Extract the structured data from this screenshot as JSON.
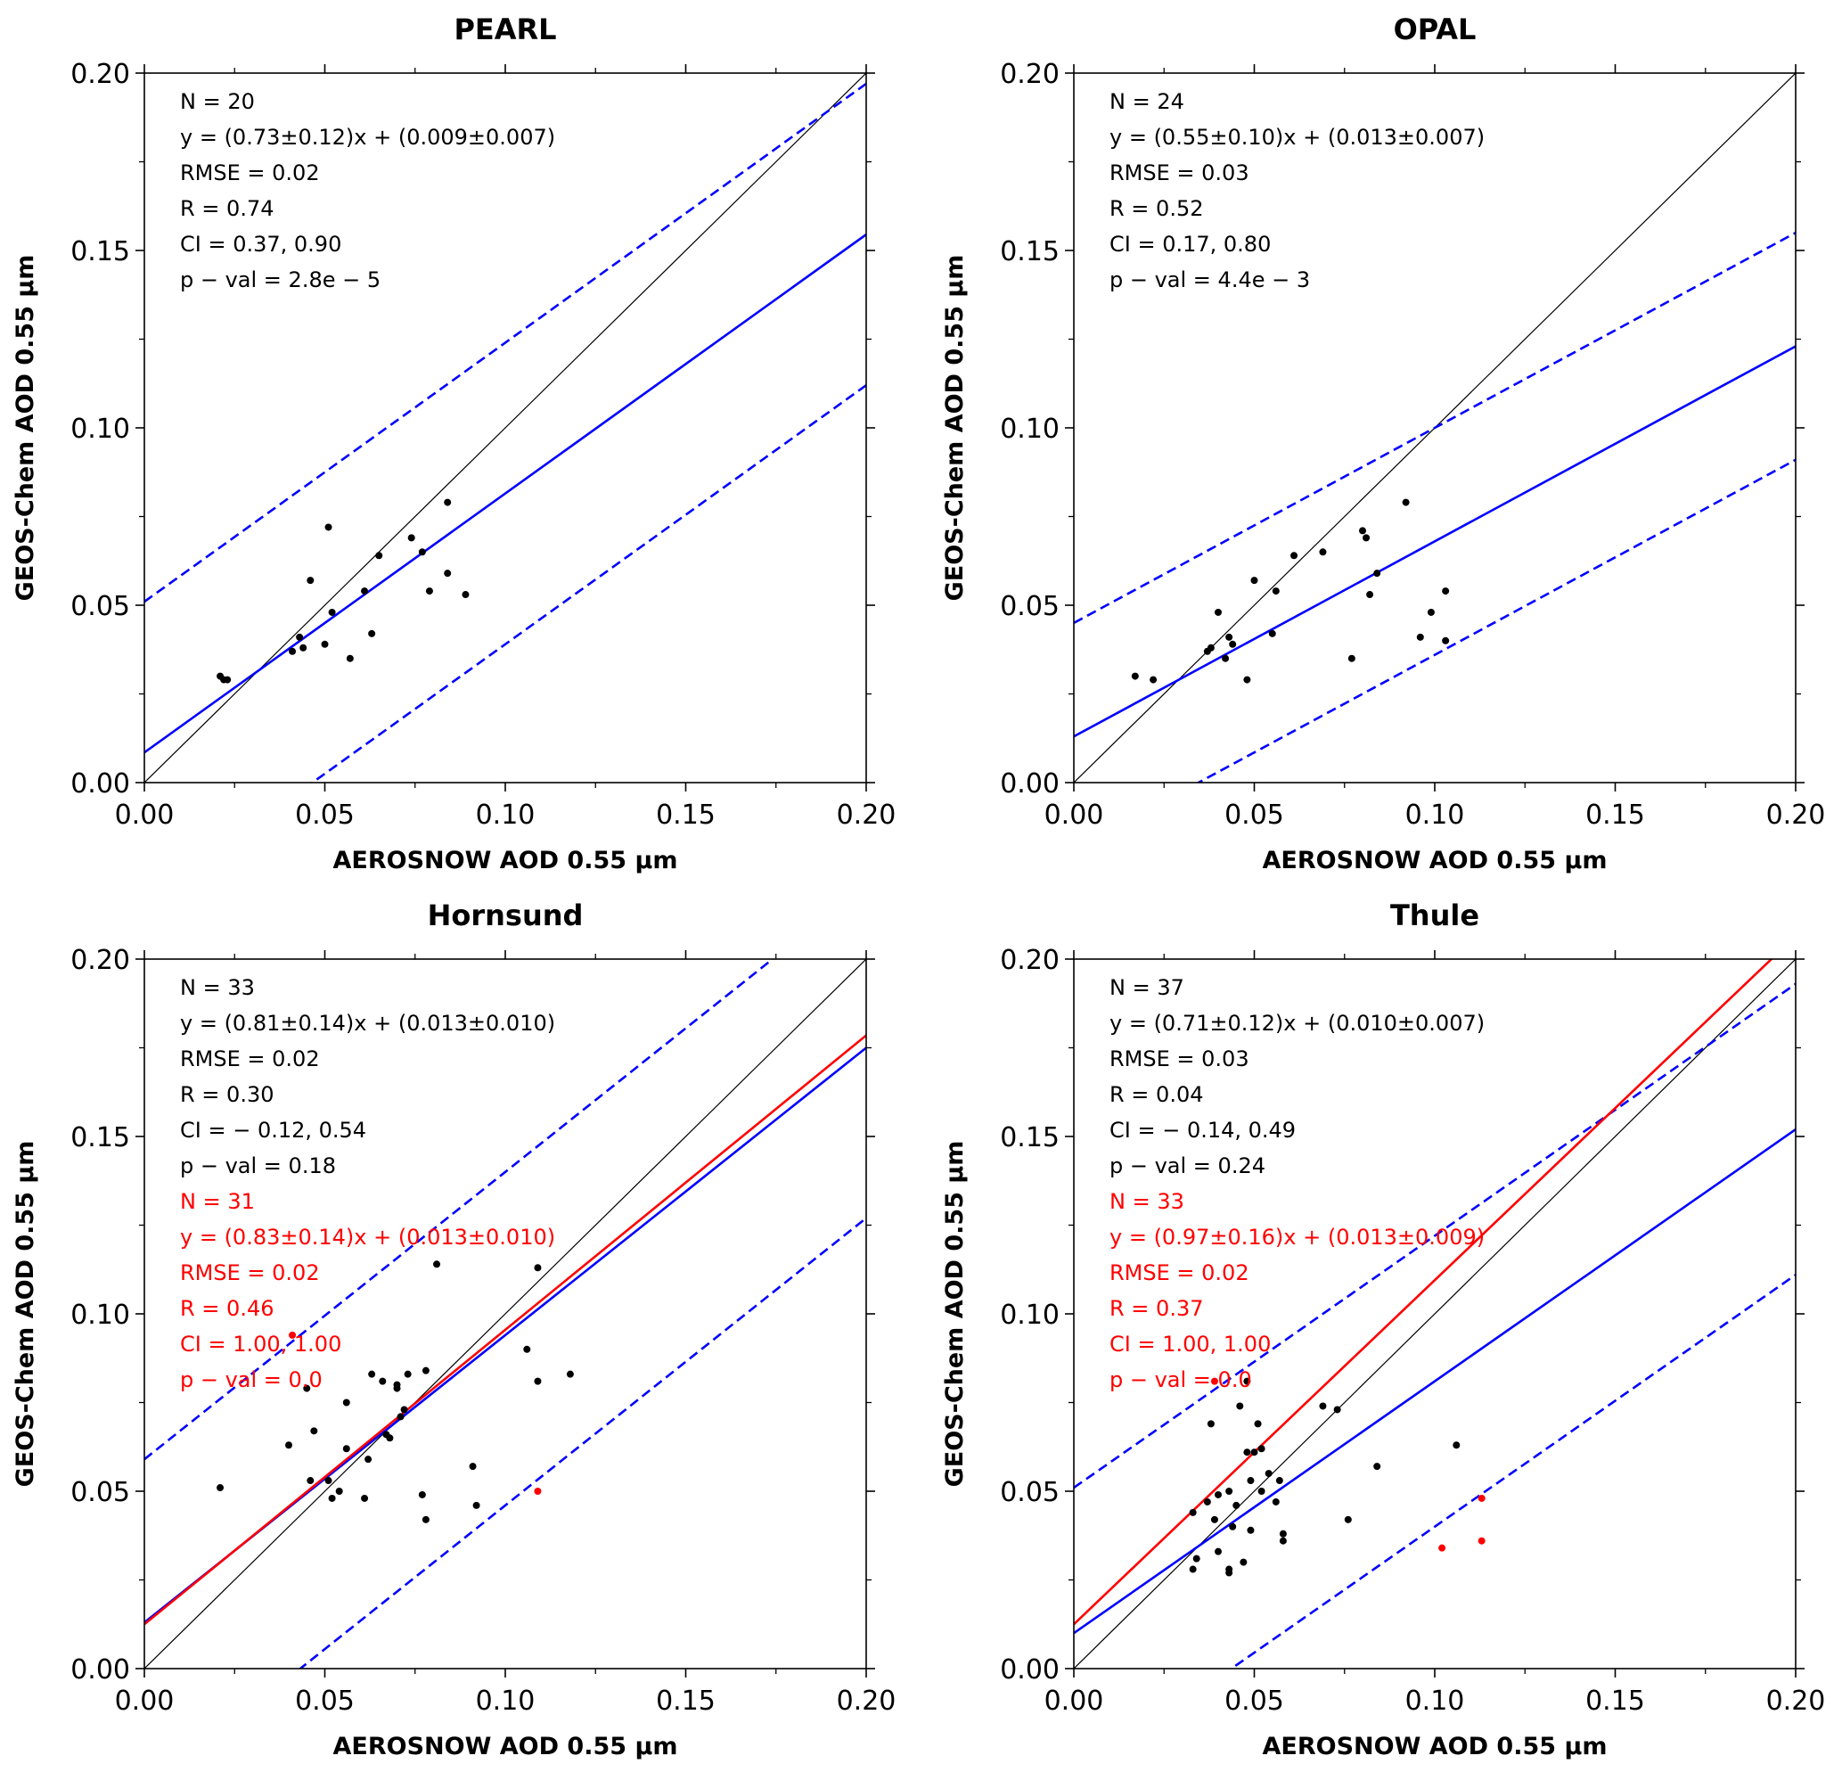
{
  "figure": {
    "colors": {
      "fit_all": "#0000ff",
      "fit_subset": "#ff0000",
      "identity": "#000000",
      "points": "#000000",
      "highlight_points": "#ff0000"
    }
  },
  "chart_data": [
    {
      "type": "scatter",
      "title": "PEARL",
      "xlabel": "AEROSNOW AOD 0.55 µm",
      "ylabel": "GEOS-Chem AOD 0.55 µm",
      "xlim": [
        0,
        0.2
      ],
      "ylim": [
        0,
        0.2
      ],
      "xticks": [
        "0.00",
        "0.05",
        "0.10",
        "0.15",
        "0.20"
      ],
      "yticks": [
        "0.00",
        "0.05",
        "0.10",
        "0.15",
        "0.20"
      ],
      "grid": false,
      "stats": [
        {
          "text": "N = 20",
          "color": "#000000"
        },
        {
          "text": "y = (0.73±0.12)x + (0.009±0.007)",
          "color": "#000000"
        },
        {
          "text": "RMSE = 0.02",
          "color": "#000000"
        },
        {
          "text": "R = 0.74",
          "color": "#000000"
        },
        {
          "text": "CI = 0.37, 0.90",
          "color": "#000000"
        },
        {
          "text": "p − val = 2.8e − 5",
          "color": "#000000"
        }
      ],
      "fit_lines": [
        {
          "slope": 0.73,
          "intercept": 0.0085,
          "color": "#0000ff",
          "dash": false
        },
        {
          "slope": 0.73,
          "intercept": 0.051,
          "color": "#0000ff",
          "dash": true
        },
        {
          "slope": 0.73,
          "intercept": -0.034,
          "color": "#0000ff",
          "dash": true
        }
      ],
      "points": [
        {
          "x": 0.021,
          "y": 0.03
        },
        {
          "x": 0.022,
          "y": 0.029
        },
        {
          "x": 0.023,
          "y": 0.029
        },
        {
          "x": 0.041,
          "y": 0.037
        },
        {
          "x": 0.043,
          "y": 0.041
        },
        {
          "x": 0.044,
          "y": 0.038
        },
        {
          "x": 0.046,
          "y": 0.057
        },
        {
          "x": 0.05,
          "y": 0.039
        },
        {
          "x": 0.051,
          "y": 0.072
        },
        {
          "x": 0.052,
          "y": 0.048
        },
        {
          "x": 0.057,
          "y": 0.035
        },
        {
          "x": 0.061,
          "y": 0.054
        },
        {
          "x": 0.063,
          "y": 0.042
        },
        {
          "x": 0.065,
          "y": 0.064
        },
        {
          "x": 0.074,
          "y": 0.069
        },
        {
          "x": 0.077,
          "y": 0.065
        },
        {
          "x": 0.079,
          "y": 0.054
        },
        {
          "x": 0.084,
          "y": 0.079
        },
        {
          "x": 0.084,
          "y": 0.059
        },
        {
          "x": 0.089,
          "y": 0.053
        }
      ],
      "highlight_points": []
    },
    {
      "type": "scatter",
      "title": "OPAL",
      "xlabel": "AEROSNOW AOD 0.55 µm",
      "ylabel": "GEOS-Chem AOD 0.55 µm",
      "xlim": [
        0,
        0.2
      ],
      "ylim": [
        0,
        0.2
      ],
      "xticks": [
        "0.00",
        "0.05",
        "0.10",
        "0.15",
        "0.20"
      ],
      "yticks": [
        "0.00",
        "0.05",
        "0.10",
        "0.15",
        "0.20"
      ],
      "grid": false,
      "stats": [
        {
          "text": "N = 24",
          "color": "#000000"
        },
        {
          "text": "y = (0.55±0.10)x + (0.013±0.007)",
          "color": "#000000"
        },
        {
          "text": "RMSE = 0.03",
          "color": "#000000"
        },
        {
          "text": "R = 0.52",
          "color": "#000000"
        },
        {
          "text": "CI = 0.17, 0.80",
          "color": "#000000"
        },
        {
          "text": "p − val = 4.4e − 3",
          "color": "#000000"
        }
      ],
      "fit_lines": [
        {
          "slope": 0.55,
          "intercept": 0.013,
          "color": "#0000ff",
          "dash": false
        },
        {
          "slope": 0.55,
          "intercept": 0.045,
          "color": "#0000ff",
          "dash": true
        },
        {
          "slope": 0.55,
          "intercept": -0.019,
          "color": "#0000ff",
          "dash": true
        }
      ],
      "points": [
        {
          "x": 0.017,
          "y": 0.03
        },
        {
          "x": 0.022,
          "y": 0.029
        },
        {
          "x": 0.037,
          "y": 0.037
        },
        {
          "x": 0.038,
          "y": 0.038
        },
        {
          "x": 0.04,
          "y": 0.048
        },
        {
          "x": 0.042,
          "y": 0.035
        },
        {
          "x": 0.043,
          "y": 0.041
        },
        {
          "x": 0.044,
          "y": 0.039
        },
        {
          "x": 0.048,
          "y": 0.029
        },
        {
          "x": 0.05,
          "y": 0.057
        },
        {
          "x": 0.055,
          "y": 0.042
        },
        {
          "x": 0.056,
          "y": 0.054
        },
        {
          "x": 0.061,
          "y": 0.064
        },
        {
          "x": 0.069,
          "y": 0.065
        },
        {
          "x": 0.077,
          "y": 0.035
        },
        {
          "x": 0.08,
          "y": 0.071
        },
        {
          "x": 0.081,
          "y": 0.069
        },
        {
          "x": 0.082,
          "y": 0.053
        },
        {
          "x": 0.084,
          "y": 0.059
        },
        {
          "x": 0.092,
          "y": 0.079
        },
        {
          "x": 0.096,
          "y": 0.041
        },
        {
          "x": 0.099,
          "y": 0.048
        },
        {
          "x": 0.103,
          "y": 0.054
        },
        {
          "x": 0.103,
          "y": 0.04
        }
      ],
      "highlight_points": []
    },
    {
      "type": "scatter",
      "title": "Hornsund",
      "xlabel": "AEROSNOW AOD 0.55 µm",
      "ylabel": "GEOS-Chem AOD 0.55 µm",
      "xlim": [
        0,
        0.2
      ],
      "ylim": [
        0,
        0.2
      ],
      "xticks": [
        "0.00",
        "0.05",
        "0.10",
        "0.15",
        "0.20"
      ],
      "yticks": [
        "0.00",
        "0.05",
        "0.10",
        "0.15",
        "0.20"
      ],
      "grid": false,
      "stats": [
        {
          "text": "N = 33",
          "color": "#000000"
        },
        {
          "text": "y = (0.81±0.14)x + (0.013±0.010)",
          "color": "#000000"
        },
        {
          "text": "RMSE = 0.02",
          "color": "#000000"
        },
        {
          "text": "R = 0.30",
          "color": "#000000"
        },
        {
          "text": "CI = − 0.12, 0.54",
          "color": "#000000"
        },
        {
          "text": "p − val = 0.18",
          "color": "#000000"
        },
        {
          "text": "N = 31",
          "color": "#ff0000"
        },
        {
          "text": "y = (0.83±0.14)x + (0.013±0.010)",
          "color": "#ff0000"
        },
        {
          "text": "RMSE = 0.02",
          "color": "#ff0000"
        },
        {
          "text": "R = 0.46",
          "color": "#ff0000"
        },
        {
          "text": "CI = 1.00, 1.00",
          "color": "#ff0000"
        },
        {
          "text": "p − val = 0.0",
          "color": "#ff0000"
        }
      ],
      "fit_lines": [
        {
          "slope": 0.81,
          "intercept": 0.013,
          "color": "#0000ff",
          "dash": false
        },
        {
          "slope": 0.81,
          "intercept": 0.059,
          "color": "#0000ff",
          "dash": true
        },
        {
          "slope": 0.81,
          "intercept": -0.035,
          "color": "#0000ff",
          "dash": true
        },
        {
          "slope": 0.83,
          "intercept": 0.0125,
          "color": "#ff0000",
          "dash": false
        }
      ],
      "points": [
        {
          "x": 0.021,
          "y": 0.051
        },
        {
          "x": 0.04,
          "y": 0.063
        },
        {
          "x": 0.045,
          "y": 0.079
        },
        {
          "x": 0.046,
          "y": 0.053
        },
        {
          "x": 0.047,
          "y": 0.067
        },
        {
          "x": 0.051,
          "y": 0.053
        },
        {
          "x": 0.052,
          "y": 0.048
        },
        {
          "x": 0.054,
          "y": 0.05
        },
        {
          "x": 0.056,
          "y": 0.075
        },
        {
          "x": 0.056,
          "y": 0.062
        },
        {
          "x": 0.061,
          "y": 0.048
        },
        {
          "x": 0.062,
          "y": 0.059
        },
        {
          "x": 0.063,
          "y": 0.083
        },
        {
          "x": 0.066,
          "y": 0.081
        },
        {
          "x": 0.067,
          "y": 0.066
        },
        {
          "x": 0.068,
          "y": 0.065
        },
        {
          "x": 0.07,
          "y": 0.08
        },
        {
          "x": 0.07,
          "y": 0.079
        },
        {
          "x": 0.071,
          "y": 0.071
        },
        {
          "x": 0.072,
          "y": 0.073
        },
        {
          "x": 0.073,
          "y": 0.083
        },
        {
          "x": 0.077,
          "y": 0.049
        },
        {
          "x": 0.078,
          "y": 0.084
        },
        {
          "x": 0.078,
          "y": 0.042
        },
        {
          "x": 0.081,
          "y": 0.114
        },
        {
          "x": 0.091,
          "y": 0.057
        },
        {
          "x": 0.092,
          "y": 0.046
        },
        {
          "x": 0.106,
          "y": 0.09
        },
        {
          "x": 0.109,
          "y": 0.113
        },
        {
          "x": 0.109,
          "y": 0.081
        },
        {
          "x": 0.118,
          "y": 0.083
        }
      ],
      "highlight_points": [
        {
          "x": 0.041,
          "y": 0.094
        },
        {
          "x": 0.109,
          "y": 0.05
        }
      ]
    },
    {
      "type": "scatter",
      "title": "Thule",
      "xlabel": "AEROSNOW AOD 0.55 µm",
      "ylabel": "GEOS-Chem AOD 0.55 µm",
      "xlim": [
        0,
        0.2
      ],
      "ylim": [
        0,
        0.2
      ],
      "xticks": [
        "0.00",
        "0.05",
        "0.10",
        "0.15",
        "0.20"
      ],
      "yticks": [
        "0.00",
        "0.05",
        "0.10",
        "0.15",
        "0.20"
      ],
      "grid": false,
      "stats": [
        {
          "text": "N = 37",
          "color": "#000000"
        },
        {
          "text": "y = (0.71±0.12)x + (0.010±0.007)",
          "color": "#000000"
        },
        {
          "text": "RMSE = 0.03",
          "color": "#000000"
        },
        {
          "text": "R = 0.04",
          "color": "#000000"
        },
        {
          "text": "CI = − 0.14, 0.49",
          "color": "#000000"
        },
        {
          "text": "p − val = 0.24",
          "color": "#000000"
        },
        {
          "text": "N = 33",
          "color": "#ff0000"
        },
        {
          "text": "y = (0.97±0.16)x + (0.013±0.009)",
          "color": "#ff0000"
        },
        {
          "text": "RMSE = 0.02",
          "color": "#ff0000"
        },
        {
          "text": "R = 0.37",
          "color": "#ff0000"
        },
        {
          "text": "CI = 1.00, 1.00",
          "color": "#ff0000"
        },
        {
          "text": "p − val = 0.0",
          "color": "#ff0000"
        }
      ],
      "fit_lines": [
        {
          "slope": 0.71,
          "intercept": 0.01,
          "color": "#0000ff",
          "dash": false
        },
        {
          "slope": 0.71,
          "intercept": 0.051,
          "color": "#0000ff",
          "dash": true
        },
        {
          "slope": 0.71,
          "intercept": -0.031,
          "color": "#0000ff",
          "dash": true
        },
        {
          "slope": 0.97,
          "intercept": 0.0125,
          "color": "#ff0000",
          "dash": false
        }
      ],
      "points": [
        {
          "x": 0.033,
          "y": 0.044
        },
        {
          "x": 0.033,
          "y": 0.028
        },
        {
          "x": 0.034,
          "y": 0.031
        },
        {
          "x": 0.037,
          "y": 0.047
        },
        {
          "x": 0.038,
          "y": 0.069
        },
        {
          "x": 0.039,
          "y": 0.042
        },
        {
          "x": 0.04,
          "y": 0.033
        },
        {
          "x": 0.04,
          "y": 0.049
        },
        {
          "x": 0.043,
          "y": 0.027
        },
        {
          "x": 0.043,
          "y": 0.028
        },
        {
          "x": 0.043,
          "y": 0.05
        },
        {
          "x": 0.044,
          "y": 0.04
        },
        {
          "x": 0.045,
          "y": 0.046
        },
        {
          "x": 0.046,
          "y": 0.074
        },
        {
          "x": 0.047,
          "y": 0.03
        },
        {
          "x": 0.048,
          "y": 0.061
        },
        {
          "x": 0.048,
          "y": 0.081
        },
        {
          "x": 0.049,
          "y": 0.053
        },
        {
          "x": 0.049,
          "y": 0.039
        },
        {
          "x": 0.05,
          "y": 0.061
        },
        {
          "x": 0.051,
          "y": 0.069
        },
        {
          "x": 0.052,
          "y": 0.062
        },
        {
          "x": 0.052,
          "y": 0.05
        },
        {
          "x": 0.054,
          "y": 0.055
        },
        {
          "x": 0.056,
          "y": 0.047
        },
        {
          "x": 0.057,
          "y": 0.053
        },
        {
          "x": 0.058,
          "y": 0.036
        },
        {
          "x": 0.058,
          "y": 0.038
        },
        {
          "x": 0.069,
          "y": 0.074
        },
        {
          "x": 0.073,
          "y": 0.073
        },
        {
          "x": 0.076,
          "y": 0.042
        },
        {
          "x": 0.084,
          "y": 0.057
        },
        {
          "x": 0.106,
          "y": 0.063
        }
      ],
      "highlight_points": [
        {
          "x": 0.039,
          "y": 0.081
        },
        {
          "x": 0.102,
          "y": 0.034
        },
        {
          "x": 0.113,
          "y": 0.048
        },
        {
          "x": 0.113,
          "y": 0.036
        }
      ]
    }
  ]
}
